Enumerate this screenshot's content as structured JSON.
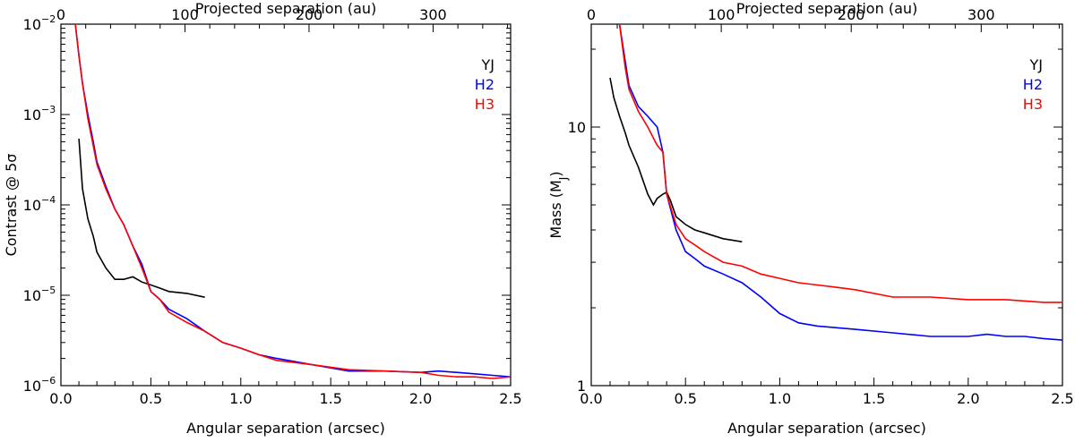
{
  "chart_data": [
    {
      "type": "line",
      "yscale": "log",
      "xlabel": "Angular separation (arcsec)",
      "ylabel": "Contrast @ 5σ",
      "x2label": "Projected separation (au)",
      "xlim": [
        0,
        2.5
      ],
      "ylim": [
        1e-06,
        0.01
      ],
      "xticks": [
        0.0,
        0.5,
        1.0,
        1.5,
        2.0,
        2.5
      ],
      "xtick_labels": [
        "0.0",
        "0.5",
        "1.0",
        "1.5",
        "2.0",
        "2.5"
      ],
      "x2ticks_au": [
        0,
        100,
        200,
        300
      ],
      "x2tick_labels": [
        "0",
        "100",
        "200",
        "300"
      ],
      "au_per_arcsec": 145,
      "yticks": [
        1e-06,
        1e-05,
        0.0001,
        0.001,
        0.01
      ],
      "ytick_labels": [
        [
          "10",
          "−6"
        ],
        [
          "10",
          "−5"
        ],
        [
          "10",
          "−4"
        ],
        [
          "10",
          "−3"
        ],
        [
          "10",
          "−2"
        ]
      ],
      "legend": [
        "YJ",
        "H2",
        "H3"
      ],
      "series": [
        {
          "name": "YJ",
          "color": "#000000",
          "x": [
            0.1,
            0.12,
            0.15,
            0.18,
            0.2,
            0.25,
            0.3,
            0.35,
            0.4,
            0.45,
            0.5,
            0.55,
            0.6,
            0.7,
            0.8
          ],
          "y": [
            0.00054,
            0.00015,
            7e-05,
            4.5e-05,
            3e-05,
            2e-05,
            1.5e-05,
            1.5e-05,
            1.6e-05,
            1.4e-05,
            1.3e-05,
            1.2e-05,
            1.1e-05,
            1.05e-05,
            9.5e-06
          ]
        },
        {
          "name": "H2",
          "color": "#0000ff",
          "x": [
            0.08,
            0.1,
            0.12,
            0.15,
            0.18,
            0.2,
            0.25,
            0.3,
            0.35,
            0.4,
            0.45,
            0.5,
            0.55,
            0.6,
            0.7,
            0.8,
            0.9,
            1.0,
            1.1,
            1.2,
            1.4,
            1.6,
            1.8,
            2.0,
            2.1,
            2.2,
            2.3,
            2.4,
            2.5
          ],
          "y": [
            0.01,
            0.0045,
            0.0022,
            0.001,
            0.0005,
            0.0003,
            0.00016,
            9e-05,
            6e-05,
            3.5e-05,
            2.2e-05,
            1.1e-05,
            9e-06,
            7e-06,
            5.5e-06,
            4e-06,
            3e-06,
            2.6e-06,
            2.2e-06,
            2e-06,
            1.7e-06,
            1.45e-06,
            1.45e-06,
            1.4e-06,
            1.45e-06,
            1.4e-06,
            1.35e-06,
            1.3e-06,
            1.25e-06
          ]
        },
        {
          "name": "H3",
          "color": "#ff0000",
          "x": [
            0.08,
            0.1,
            0.12,
            0.15,
            0.18,
            0.2,
            0.25,
            0.3,
            0.35,
            0.4,
            0.45,
            0.5,
            0.55,
            0.6,
            0.7,
            0.8,
            0.9,
            1.0,
            1.1,
            1.2,
            1.3,
            1.4,
            1.6,
            1.8,
            2.0,
            2.1,
            2.2,
            2.3,
            2.4,
            2.5
          ],
          "y": [
            0.01,
            0.0045,
            0.0022,
            0.0009,
            0.00045,
            0.00028,
            0.00015,
            9e-05,
            6e-05,
            3.5e-05,
            2e-05,
            1.1e-05,
            9e-06,
            6.5e-06,
            5e-06,
            4e-06,
            3e-06,
            2.6e-06,
            2.2e-06,
            1.9e-06,
            1.8e-06,
            1.7e-06,
            1.5e-06,
            1.45e-06,
            1.4e-06,
            1.3e-06,
            1.25e-06,
            1.25e-06,
            1.2e-06,
            1.25e-06
          ]
        }
      ]
    },
    {
      "type": "line",
      "yscale": "log",
      "xlabel": "Angular separation (arcsec)",
      "ylabel": "Mass (M",
      "ylabel_sub": "J",
      "ylabel_end": ")",
      "x2label": "Projected separation (au)",
      "xlim": [
        0,
        2.5
      ],
      "ylim": [
        1,
        25
      ],
      "xticks": [
        0.0,
        0.5,
        1.0,
        1.5,
        2.0,
        2.5
      ],
      "xtick_labels": [
        "0.0",
        "0.5",
        "1.0",
        "1.5",
        "2.0",
        "2.5"
      ],
      "x2ticks_au": [
        0,
        100,
        200,
        300
      ],
      "x2tick_labels": [
        "0",
        "100",
        "200",
        "300"
      ],
      "au_per_arcsec": 145,
      "yticks": [
        1,
        10
      ],
      "ytick_labels": [
        "1",
        "10"
      ],
      "legend": [
        "YJ",
        "H2",
        "H3"
      ],
      "series": [
        {
          "name": "YJ",
          "color": "#000000",
          "x": [
            0.1,
            0.12,
            0.15,
            0.18,
            0.2,
            0.25,
            0.3,
            0.33,
            0.35,
            0.38,
            0.4,
            0.42,
            0.45,
            0.5,
            0.55,
            0.6,
            0.7,
            0.8
          ],
          "y": [
            15.5,
            13,
            11,
            9.5,
            8.5,
            7,
            5.5,
            5,
            5.3,
            5.5,
            5.6,
            5.2,
            4.5,
            4.2,
            4.0,
            3.9,
            3.7,
            3.6
          ]
        },
        {
          "name": "H2",
          "color": "#0000ff",
          "x": [
            0.15,
            0.18,
            0.2,
            0.25,
            0.3,
            0.35,
            0.38,
            0.4,
            0.45,
            0.5,
            0.55,
            0.6,
            0.7,
            0.8,
            0.9,
            1.0,
            1.1,
            1.2,
            1.4,
            1.6,
            1.8,
            2.0,
            2.1,
            2.2,
            2.3,
            2.4,
            2.5
          ],
          "y": [
            25,
            18,
            14.5,
            12,
            11,
            10,
            8,
            5.5,
            4,
            3.3,
            3.1,
            2.9,
            2.7,
            2.5,
            2.2,
            1.9,
            1.75,
            1.7,
            1.65,
            1.6,
            1.55,
            1.55,
            1.58,
            1.55,
            1.55,
            1.52,
            1.5
          ]
        },
        {
          "name": "H3",
          "color": "#ff0000",
          "x": [
            0.15,
            0.18,
            0.2,
            0.25,
            0.3,
            0.35,
            0.38,
            0.4,
            0.45,
            0.5,
            0.55,
            0.6,
            0.7,
            0.8,
            0.9,
            1.0,
            1.1,
            1.2,
            1.3,
            1.4,
            1.6,
            1.8,
            2.0,
            2.2,
            2.4,
            2.5
          ],
          "y": [
            25,
            17,
            14,
            11.5,
            10,
            8.5,
            8,
            5.5,
            4.2,
            3.7,
            3.5,
            3.3,
            3.0,
            2.9,
            2.7,
            2.6,
            2.5,
            2.45,
            2.4,
            2.35,
            2.2,
            2.2,
            2.15,
            2.15,
            2.1,
            2.1
          ]
        }
      ]
    }
  ]
}
